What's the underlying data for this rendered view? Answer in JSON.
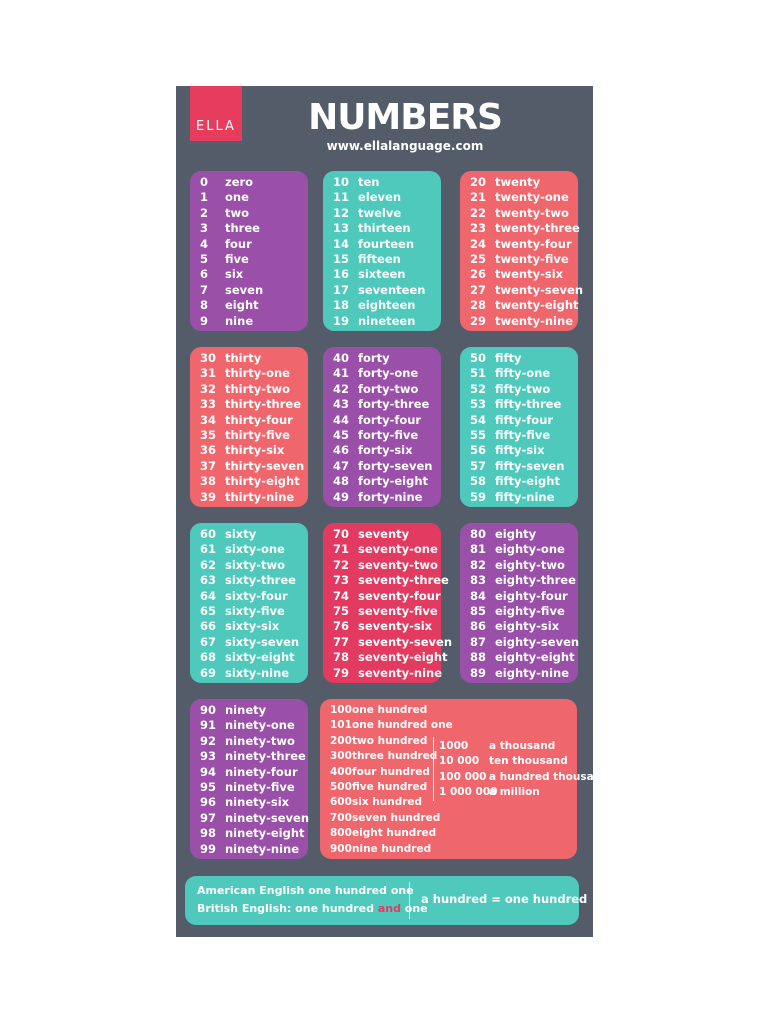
{
  "header": {
    "logo": "ELLA",
    "title": "NUMBERS",
    "url": "www.ellalanguage.com"
  },
  "groups": [
    {
      "color": "#9a4fa8",
      "rows": [
        [
          "0",
          "zero"
        ],
        [
          "1",
          "one"
        ],
        [
          "2",
          "two"
        ],
        [
          "3",
          "three"
        ],
        [
          "4",
          "four"
        ],
        [
          "5",
          "five"
        ],
        [
          "6",
          "six"
        ],
        [
          "7",
          "seven"
        ],
        [
          "8",
          "eight"
        ],
        [
          "9",
          "nine"
        ]
      ]
    },
    {
      "color": "#4ec9bc",
      "rows": [
        [
          "10",
          "ten"
        ],
        [
          "11",
          "eleven"
        ],
        [
          "12",
          "twelve"
        ],
        [
          "13",
          "thirteen"
        ],
        [
          "14",
          "fourteen"
        ],
        [
          "15",
          "fifteen"
        ],
        [
          "16",
          "sixteen"
        ],
        [
          "17",
          "seventeen"
        ],
        [
          "18",
          "eighteen"
        ],
        [
          "19",
          "nineteen"
        ]
      ]
    },
    {
      "color": "#f0666d",
      "rows": [
        [
          "20",
          "twenty"
        ],
        [
          "21",
          "twenty-one"
        ],
        [
          "22",
          "twenty-two"
        ],
        [
          "23",
          "twenty-three"
        ],
        [
          "24",
          "twenty-four"
        ],
        [
          "25",
          "twenty-five"
        ],
        [
          "26",
          "twenty-six"
        ],
        [
          "27",
          "twenty-seven"
        ],
        [
          "28",
          "twenty-eight"
        ],
        [
          "29",
          "twenty-nine"
        ]
      ]
    },
    {
      "color": "#f0666d",
      "rows": [
        [
          "30",
          "thirty"
        ],
        [
          "31",
          "thirty-one"
        ],
        [
          "32",
          "thirty-two"
        ],
        [
          "33",
          "thirty-three"
        ],
        [
          "34",
          "thirty-four"
        ],
        [
          "35",
          "thirty-five"
        ],
        [
          "36",
          "thirty-six"
        ],
        [
          "37",
          "thirty-seven"
        ],
        [
          "38",
          "thirty-eight"
        ],
        [
          "39",
          "thirty-nine"
        ]
      ]
    },
    {
      "color": "#9a4fa8",
      "rows": [
        [
          "40",
          "forty"
        ],
        [
          "41",
          "forty-one"
        ],
        [
          "42",
          "forty-two"
        ],
        [
          "43",
          "forty-three"
        ],
        [
          "44",
          "forty-four"
        ],
        [
          "45",
          "forty-five"
        ],
        [
          "46",
          "forty-six"
        ],
        [
          "47",
          "forty-seven"
        ],
        [
          "48",
          "forty-eight"
        ],
        [
          "49",
          "forty-nine"
        ]
      ]
    },
    {
      "color": "#4ec9bc",
      "rows": [
        [
          "50",
          "fifty"
        ],
        [
          "51",
          "fifty-one"
        ],
        [
          "52",
          "fifty-two"
        ],
        [
          "53",
          "fifty-three"
        ],
        [
          "54",
          "fifty-four"
        ],
        [
          "55",
          "fifty-five"
        ],
        [
          "56",
          "fifty-six"
        ],
        [
          "57",
          "fifty-seven"
        ],
        [
          "58",
          "fifty-eight"
        ],
        [
          "59",
          "fifty-nine"
        ]
      ]
    },
    {
      "color": "#4ec9bc",
      "rows": [
        [
          "60",
          "sixty"
        ],
        [
          "61",
          "sixty-one"
        ],
        [
          "62",
          "sixty-two"
        ],
        [
          "63",
          "sixty-three"
        ],
        [
          "64",
          "sixty-four"
        ],
        [
          "65",
          "sixty-five"
        ],
        [
          "66",
          "sixty-six"
        ],
        [
          "67",
          "sixty-seven"
        ],
        [
          "68",
          "sixty-eight"
        ],
        [
          "69",
          "sixty-nine"
        ]
      ]
    },
    {
      "color": "#e23a60",
      "rows": [
        [
          "70",
          "seventy"
        ],
        [
          "71",
          "seventy-one"
        ],
        [
          "72",
          "seventy-two"
        ],
        [
          "73",
          "seventy-three"
        ],
        [
          "74",
          "seventy-four"
        ],
        [
          "75",
          "seventy-five"
        ],
        [
          "76",
          "seventy-six"
        ],
        [
          "77",
          "seventy-seven"
        ],
        [
          "78",
          "seventy-eight"
        ],
        [
          "79",
          "seventy-nine"
        ]
      ]
    },
    {
      "color": "#9a4fa8",
      "rows": [
        [
          "80",
          "eighty"
        ],
        [
          "81",
          "eighty-one"
        ],
        [
          "82",
          "eighty-two"
        ],
        [
          "83",
          "eighty-three"
        ],
        [
          "84",
          "eighty-four"
        ],
        [
          "85",
          "eighty-five"
        ],
        [
          "86",
          "eighty-six"
        ],
        [
          "87",
          "eighty-seven"
        ],
        [
          "88",
          "eighty-eight"
        ],
        [
          "89",
          "eighty-nine"
        ]
      ]
    },
    {
      "color": "#9a4fa8",
      "rows": [
        [
          "90",
          "ninety"
        ],
        [
          "91",
          "ninety-one"
        ],
        [
          "92",
          "ninety-two"
        ],
        [
          "93",
          "ninety-three"
        ],
        [
          "94",
          "ninety-four"
        ],
        [
          "95",
          "ninety-five"
        ],
        [
          "96",
          "ninety-six"
        ],
        [
          "97",
          "ninety-seven"
        ],
        [
          "98",
          "ninety-eight"
        ],
        [
          "99",
          "ninety-nine"
        ]
      ]
    }
  ],
  "hundreds": {
    "color": "#f0666d",
    "rows": [
      [
        "100",
        "one hundred"
      ],
      [
        "101",
        "one hundred one"
      ],
      [
        "200",
        "two hundred"
      ],
      [
        "300",
        "three hundred"
      ],
      [
        "400",
        "four hundred"
      ],
      [
        "500",
        "five hundred"
      ],
      [
        "600",
        "six hundred"
      ],
      [
        "700",
        "seven hundred"
      ],
      [
        "800",
        "eight hundred"
      ],
      [
        "900",
        "nine hundred"
      ]
    ],
    "big": [
      [
        "1000",
        "a thousand"
      ],
      [
        "10 000",
        "ten thousand"
      ],
      [
        "100 000",
        "a hundred thousand"
      ],
      [
        "1 000 000",
        "a million"
      ]
    ]
  },
  "footer": {
    "american": "American English one hundred one",
    "british_prefix": "British English: one hundred ",
    "british_and": "and",
    "british_suffix": " one",
    "right": "a hundred = one hundred"
  }
}
